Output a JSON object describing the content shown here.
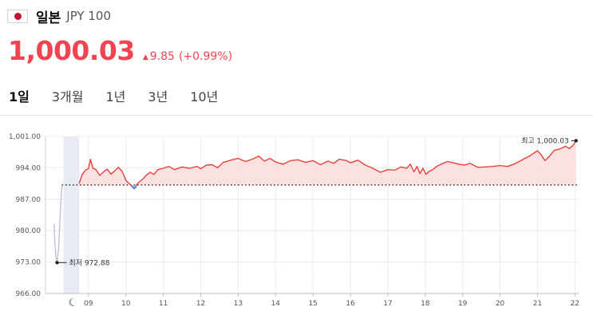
{
  "header": {
    "flag_icon": "japan-flag-icon",
    "country": "일본",
    "code": "JPY 100"
  },
  "quote": {
    "price": "1,000.03",
    "change_arrow": "▲",
    "change": "9.85",
    "change_pct": "(+0.99%)",
    "color": "#f04452"
  },
  "tabs": [
    {
      "label": "1일",
      "active": true
    },
    {
      "label": "3개월",
      "active": false
    },
    {
      "label": "1년",
      "active": false
    },
    {
      "label": "3년",
      "active": false
    },
    {
      "label": "10년",
      "active": false
    }
  ],
  "chart_data": {
    "type": "area",
    "ylim": [
      966.0,
      1001.0
    ],
    "yticks": [
      "1,001.00",
      "994.00",
      "987.00",
      "980.00",
      "973.00",
      "966.00"
    ],
    "ytick_values": [
      1001.0,
      994.0,
      987.0,
      980.0,
      973.0,
      966.0
    ],
    "xticks": [
      "09",
      "10",
      "11",
      "12",
      "13",
      "14",
      "15",
      "16",
      "17",
      "18",
      "19",
      "20",
      "21",
      "22"
    ],
    "previous_close": 990.18,
    "grid": true,
    "night_icon": "moon-icon",
    "low_label": "최저",
    "low_value": "972.88",
    "high_label": "최고",
    "high_value": "1,000.03",
    "line_color": "#e8433b",
    "fill_color": "#fbdcdc",
    "premarket_color": "#b9bdd3",
    "dip_color": "#3b82f6",
    "premarket": [
      {
        "x": 8.08,
        "y": 981.5
      },
      {
        "x": 8.1,
        "y": 977.2
      },
      {
        "x": 8.13,
        "y": 974.2
      },
      {
        "x": 8.16,
        "y": 972.88
      },
      {
        "x": 8.2,
        "y": 976.0
      },
      {
        "x": 8.24,
        "y": 983.0
      },
      {
        "x": 8.27,
        "y": 987.5
      },
      {
        "x": 8.29,
        "y": 990.18
      }
    ],
    "main": [
      {
        "x": 8.75,
        "y": 990.5
      },
      {
        "x": 8.83,
        "y": 992.5
      },
      {
        "x": 8.92,
        "y": 993.5
      },
      {
        "x": 9.0,
        "y": 993.8
      },
      {
        "x": 9.05,
        "y": 995.9
      },
      {
        "x": 9.12,
        "y": 993.9
      },
      {
        "x": 9.2,
        "y": 993.6
      },
      {
        "x": 9.3,
        "y": 992.3
      },
      {
        "x": 9.4,
        "y": 993.1
      },
      {
        "x": 9.5,
        "y": 993.7
      },
      {
        "x": 9.6,
        "y": 992.6
      },
      {
        "x": 9.7,
        "y": 993.3
      },
      {
        "x": 9.8,
        "y": 994.1
      },
      {
        "x": 9.9,
        "y": 993.2
      },
      {
        "x": 10.0,
        "y": 991.2
      },
      {
        "x": 10.1,
        "y": 990.4
      },
      {
        "x": 10.22,
        "y": 989.4
      },
      {
        "x": 10.32,
        "y": 990.6
      },
      {
        "x": 10.45,
        "y": 991.5
      },
      {
        "x": 10.55,
        "y": 992.4
      },
      {
        "x": 10.65,
        "y": 993.0
      },
      {
        "x": 10.75,
        "y": 992.5
      },
      {
        "x": 10.85,
        "y": 993.6
      },
      {
        "x": 11.0,
        "y": 993.9
      },
      {
        "x": 11.15,
        "y": 994.3
      },
      {
        "x": 11.3,
        "y": 993.6
      },
      {
        "x": 11.5,
        "y": 994.2
      },
      {
        "x": 11.7,
        "y": 993.9
      },
      {
        "x": 11.9,
        "y": 994.3
      },
      {
        "x": 12.0,
        "y": 993.8
      },
      {
        "x": 12.15,
        "y": 994.6
      },
      {
        "x": 12.3,
        "y": 994.7
      },
      {
        "x": 12.45,
        "y": 994.0
      },
      {
        "x": 12.6,
        "y": 995.2
      },
      {
        "x": 12.8,
        "y": 995.7
      },
      {
        "x": 13.0,
        "y": 996.1
      },
      {
        "x": 13.2,
        "y": 995.4
      },
      {
        "x": 13.4,
        "y": 996.0
      },
      {
        "x": 13.55,
        "y": 996.6
      },
      {
        "x": 13.7,
        "y": 995.5
      },
      {
        "x": 13.85,
        "y": 996.1
      },
      {
        "x": 14.0,
        "y": 995.3
      },
      {
        "x": 14.2,
        "y": 994.8
      },
      {
        "x": 14.4,
        "y": 995.6
      },
      {
        "x": 14.6,
        "y": 995.8
      },
      {
        "x": 14.8,
        "y": 995.2
      },
      {
        "x": 15.0,
        "y": 995.6
      },
      {
        "x": 15.2,
        "y": 994.7
      },
      {
        "x": 15.4,
        "y": 995.5
      },
      {
        "x": 15.55,
        "y": 995.0
      },
      {
        "x": 15.7,
        "y": 995.9
      },
      {
        "x": 15.9,
        "y": 995.6
      },
      {
        "x": 16.0,
        "y": 995.1
      },
      {
        "x": 16.2,
        "y": 995.7
      },
      {
        "x": 16.4,
        "y": 994.6
      },
      {
        "x": 16.6,
        "y": 993.9
      },
      {
        "x": 16.8,
        "y": 993.0
      },
      {
        "x": 17.0,
        "y": 993.6
      },
      {
        "x": 17.2,
        "y": 993.5
      },
      {
        "x": 17.35,
        "y": 994.2
      },
      {
        "x": 17.5,
        "y": 993.9
      },
      {
        "x": 17.6,
        "y": 994.8
      },
      {
        "x": 17.7,
        "y": 993.1
      },
      {
        "x": 17.78,
        "y": 994.3
      },
      {
        "x": 17.86,
        "y": 992.7
      },
      {
        "x": 17.94,
        "y": 993.9
      },
      {
        "x": 18.02,
        "y": 992.5
      },
      {
        "x": 18.1,
        "y": 993.2
      },
      {
        "x": 18.2,
        "y": 993.6
      },
      {
        "x": 18.3,
        "y": 994.3
      },
      {
        "x": 18.45,
        "y": 994.9
      },
      {
        "x": 18.6,
        "y": 995.4
      },
      {
        "x": 18.75,
        "y": 995.1
      },
      {
        "x": 18.9,
        "y": 994.8
      },
      {
        "x": 19.05,
        "y": 994.6
      },
      {
        "x": 19.2,
        "y": 995.0
      },
      {
        "x": 19.4,
        "y": 994.1
      },
      {
        "x": 19.6,
        "y": 994.2
      },
      {
        "x": 19.8,
        "y": 994.3
      },
      {
        "x": 20.0,
        "y": 994.5
      },
      {
        "x": 20.2,
        "y": 994.3
      },
      {
        "x": 20.4,
        "y": 994.9
      },
      {
        "x": 20.6,
        "y": 995.8
      },
      {
        "x": 20.8,
        "y": 996.7
      },
      {
        "x": 21.0,
        "y": 997.8
      },
      {
        "x": 21.1,
        "y": 996.9
      },
      {
        "x": 21.2,
        "y": 995.6
      },
      {
        "x": 21.3,
        "y": 996.4
      },
      {
        "x": 21.45,
        "y": 997.9
      },
      {
        "x": 21.6,
        "y": 998.2
      },
      {
        "x": 21.75,
        "y": 998.8
      },
      {
        "x": 21.85,
        "y": 998.3
      },
      {
        "x": 21.95,
        "y": 999.0
      },
      {
        "x": 22.03,
        "y": 1000.03
      }
    ],
    "dip": [
      {
        "x": 10.15,
        "y": 990.0
      },
      {
        "x": 10.22,
        "y": 989.4
      },
      {
        "x": 10.28,
        "y": 989.8
      }
    ]
  }
}
